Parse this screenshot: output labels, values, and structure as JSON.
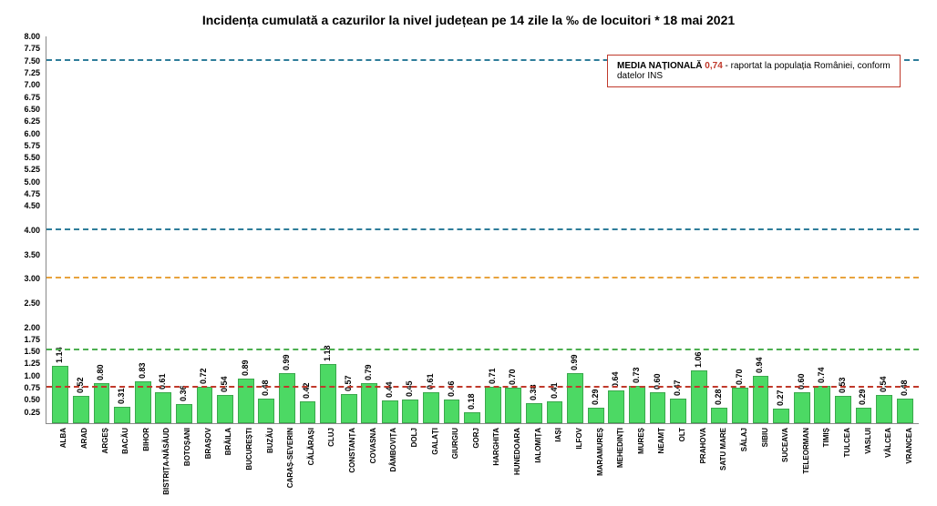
{
  "chart": {
    "type": "bar",
    "title": "Incidența cumulată a cazurilor la nivel județean pe 14 zile la ‰ de locuitori *  18 mai 2021",
    "title_fontsize": 14,
    "background_color": "#ffffff",
    "bar_color": "#4cd964",
    "bar_border_color": "#3aa84c",
    "bar_width": 0.7,
    "axis_color": "#888888",
    "label_color": "#000000",
    "label_fontsize": 9,
    "xlabel_fontsize": 8,
    "xlabel_rotation": -90,
    "ylim": [
      0,
      8
    ],
    "ytick_step": 0.25,
    "yticks": [
      "0.25",
      "0.50",
      "0.75",
      "1.00",
      "1.25",
      "1.50",
      "1.75",
      "2.00",
      "2.50",
      "3.00",
      "3.50",
      "4.00",
      "4.50",
      "4.75",
      "5.00",
      "5.25",
      "5.50",
      "5.75",
      "6.00",
      "6.25",
      "6.50",
      "6.75",
      "7.00",
      "7.25",
      "7.50",
      "7.75",
      "8.00"
    ],
    "reference_lines": [
      {
        "value": 7.5,
        "color": "#2e7d9a",
        "style": "dashed"
      },
      {
        "value": 4.0,
        "color": "#2e7d9a",
        "style": "dashed"
      },
      {
        "value": 3.0,
        "color": "#e8a33d",
        "style": "dashed"
      },
      {
        "value": 1.5,
        "color": "#4caf50",
        "style": "dashed"
      },
      {
        "value": 0.74,
        "color": "#c0392b",
        "style": "dashed"
      }
    ],
    "categories": [
      "ALBA",
      "ARAD",
      "ARGEȘ",
      "BACĂU",
      "BIHOR",
      "BISTRIȚA-NĂSĂUD",
      "BOTOȘANI",
      "BRAȘOV",
      "BRĂILA",
      "BUCUREȘTI",
      "BUZĂU",
      "CARAȘ-SEVERIN",
      "CĂLĂRAȘI",
      "CLUJ",
      "CONSTANȚA",
      "COVASNA",
      "DÂMBOVIȚA",
      "DOLJ",
      "GALAȚI",
      "GIURGIU",
      "GORJ",
      "HARGHITA",
      "HUNEDOARA",
      "IALOMIȚA",
      "IAȘI",
      "ILFOV",
      "MARAMUREȘ",
      "MEHEDINȚI",
      "MUREȘ",
      "NEAMȚ",
      "OLT",
      "PRAHOVA",
      "SATU MARE",
      "SĂLAJ",
      "SIBIU",
      "SUCEAVA",
      "TELEORMAN",
      "TIMIȘ",
      "TULCEA",
      "VASLUI",
      "VÂLCEA",
      "VRANCEA"
    ],
    "values": [
      1.14,
      0.52,
      0.8,
      0.31,
      0.83,
      0.61,
      0.36,
      0.72,
      0.54,
      0.89,
      0.48,
      0.99,
      0.42,
      1.18,
      0.57,
      0.79,
      0.44,
      0.45,
      0.61,
      0.46,
      0.18,
      0.71,
      0.7,
      0.38,
      0.41,
      0.99,
      0.29,
      0.64,
      0.73,
      0.6,
      0.47,
      1.06,
      0.28,
      0.7,
      0.94,
      0.27,
      0.6,
      0.74,
      0.53,
      0.29,
      0.54,
      0.48
    ],
    "legend": {
      "label": "MEDIA NAȚIONALĂ",
      "value": "0,74",
      "suffix": " - raportat la populația României, conform datelor INS",
      "border_color": "#c0392b",
      "value_color": "#c0392b",
      "fontsize": 10
    }
  }
}
